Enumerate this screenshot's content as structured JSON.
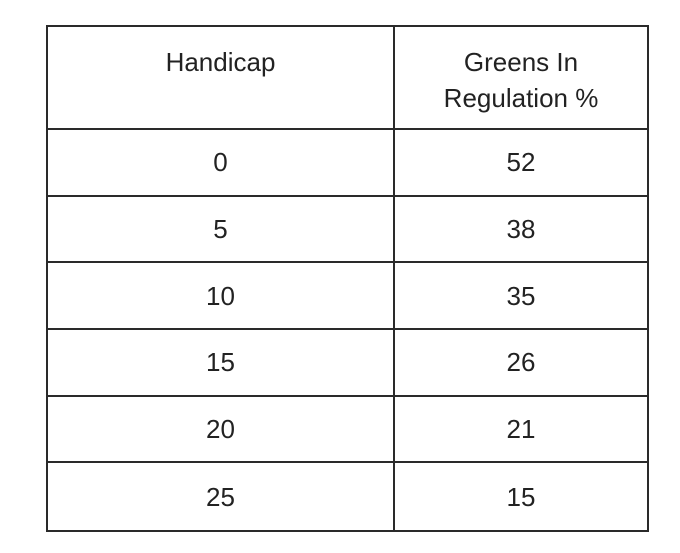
{
  "table": {
    "headers": [
      "Handicap",
      "Greens In\nRegulation %"
    ],
    "rows": [
      [
        "0",
        "52"
      ],
      [
        "5",
        "38"
      ],
      [
        "10",
        "35"
      ],
      [
        "15",
        "26"
      ],
      [
        "20",
        "21"
      ],
      [
        "25",
        "15"
      ]
    ]
  }
}
